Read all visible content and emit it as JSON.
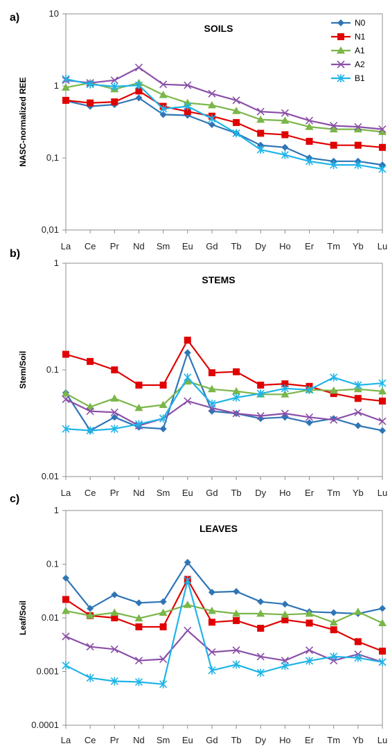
{
  "chart_data": [
    {
      "panel_label": "a)",
      "type": "line",
      "title": "SOILS",
      "ylabel": "NASC-normalized REE",
      "yscale": "log",
      "ylim": [
        0.01,
        10
      ],
      "yticks": [
        "10",
        "1",
        "0,1",
        "0,01"
      ],
      "legend": "top-right",
      "categories": [
        "La",
        "Ce",
        "Pr",
        "Nd",
        "Sm",
        "Eu",
        "Gd",
        "Tb",
        "Dy",
        "Ho",
        "Er",
        "Tm",
        "Yb",
        "Lu"
      ],
      "series": [
        {
          "name": "N0",
          "color": "#2E75B6",
          "marker": "diamond",
          "values": [
            0.62,
            0.52,
            0.55,
            0.68,
            0.4,
            0.39,
            0.29,
            0.22,
            0.15,
            0.14,
            0.1,
            0.09,
            0.09,
            0.08
          ]
        },
        {
          "name": "N1",
          "color": "#E00000",
          "marker": "square",
          "values": [
            0.63,
            0.58,
            0.6,
            0.85,
            0.52,
            0.44,
            0.38,
            0.31,
            0.22,
            0.21,
            0.17,
            0.15,
            0.15,
            0.14
          ]
        },
        {
          "name": "A1",
          "color": "#7AB648",
          "marker": "triangle",
          "values": [
            0.95,
            1.1,
            0.9,
            1.1,
            0.75,
            0.58,
            0.54,
            0.45,
            0.34,
            0.33,
            0.27,
            0.25,
            0.25,
            0.23
          ]
        },
        {
          "name": "A2",
          "color": "#8A4FA8",
          "marker": "x",
          "values": [
            1.2,
            1.1,
            1.2,
            1.8,
            1.05,
            1.02,
            0.78,
            0.63,
            0.44,
            0.42,
            0.33,
            0.28,
            0.27,
            0.25
          ]
        },
        {
          "name": "B1",
          "color": "#1EB4E8",
          "marker": "asterisk",
          "values": [
            1.25,
            1.05,
            0.98,
            1.02,
            0.48,
            0.52,
            0.35,
            0.22,
            0.13,
            0.11,
            0.09,
            0.08,
            0.08,
            0.07
          ]
        }
      ]
    },
    {
      "panel_label": "b)",
      "type": "line",
      "title": "STEMS",
      "ylabel": "Stem/Soil",
      "yscale": "log",
      "ylim": [
        0.01,
        1
      ],
      "yticks": [
        "1",
        "0.1",
        "0.01"
      ],
      "categories": [
        "La",
        "Ce",
        "Pr",
        "Nd",
        "Sm",
        "Eu",
        "Gd",
        "Tb",
        "Dy",
        "Ho",
        "Er",
        "Tm",
        "Yb",
        "Lu"
      ],
      "series": [
        {
          "name": "N0",
          "color": "#2E75B6",
          "marker": "diamond",
          "values": [
            0.061,
            0.027,
            0.036,
            0.029,
            0.028,
            0.145,
            0.041,
            0.039,
            0.035,
            0.036,
            0.032,
            0.035,
            0.03,
            0.027
          ]
        },
        {
          "name": "N1",
          "color": "#E00000",
          "marker": "square",
          "values": [
            0.14,
            0.12,
            0.1,
            0.072,
            0.072,
            0.19,
            0.094,
            0.096,
            0.072,
            0.074,
            0.07,
            0.06,
            0.054,
            0.051
          ]
        },
        {
          "name": "A1",
          "color": "#7AB648",
          "marker": "triangle",
          "values": [
            0.06,
            0.045,
            0.054,
            0.044,
            0.047,
            0.078,
            0.066,
            0.063,
            0.059,
            0.059,
            0.065,
            0.064,
            0.066,
            0.063
          ]
        },
        {
          "name": "A2",
          "color": "#8A4FA8",
          "marker": "x",
          "values": [
            0.053,
            0.041,
            0.04,
            0.03,
            0.035,
            0.051,
            0.044,
            0.039,
            0.037,
            0.039,
            0.036,
            0.034,
            0.04,
            0.033
          ]
        },
        {
          "name": "B1",
          "color": "#1EB4E8",
          "marker": "asterisk",
          "values": [
            0.028,
            0.027,
            0.028,
            0.031,
            0.035,
            0.085,
            0.048,
            0.055,
            0.06,
            0.067,
            0.065,
            0.085,
            0.072,
            0.075
          ]
        }
      ]
    },
    {
      "panel_label": "c)",
      "type": "line",
      "title": "LEAVES",
      "ylabel": "Leaf/Soil",
      "yscale": "log",
      "ylim": [
        0.0001,
        1
      ],
      "yticks": [
        "1",
        "0.1",
        "0.01",
        "0.001",
        "0.0001"
      ],
      "categories": [
        "La",
        "Ce",
        "Pr",
        "Nd",
        "Sm",
        "Eu",
        "Gd",
        "Tb",
        "Dy",
        "Ho",
        "Er",
        "Tm",
        "Yb",
        "Lu"
      ],
      "series": [
        {
          "name": "N0",
          "color": "#2E75B6",
          "marker": "diamond",
          "values": [
            0.055,
            0.015,
            0.027,
            0.019,
            0.02,
            0.108,
            0.03,
            0.031,
            0.02,
            0.018,
            0.013,
            0.0125,
            0.012,
            0.015
          ]
        },
        {
          "name": "N1",
          "color": "#E00000",
          "marker": "square",
          "values": [
            0.022,
            0.011,
            0.01,
            0.0068,
            0.0068,
            0.052,
            0.0083,
            0.0089,
            0.0064,
            0.0092,
            0.008,
            0.006,
            0.0036,
            0.0024
          ]
        },
        {
          "name": "A1",
          "color": "#7AB648",
          "marker": "triangle",
          "values": [
            0.0135,
            0.011,
            0.0125,
            0.0098,
            0.0125,
            0.0175,
            0.0135,
            0.012,
            0.012,
            0.0115,
            0.012,
            0.0082,
            0.013,
            0.008
          ]
        },
        {
          "name": "A2",
          "color": "#8A4FA8",
          "marker": "x",
          "values": [
            0.0045,
            0.0029,
            0.0026,
            0.0016,
            0.0017,
            0.0058,
            0.0023,
            0.0025,
            0.0019,
            0.0016,
            0.0025,
            0.0016,
            0.0021,
            0.0015
          ]
        },
        {
          "name": "B1",
          "color": "#1EB4E8",
          "marker": "asterisk",
          "values": [
            0.0013,
            0.00076,
            0.00066,
            0.00064,
            0.00058,
            0.05,
            0.00105,
            0.00135,
            0.00095,
            0.00127,
            0.00158,
            0.0019,
            0.0018,
            0.0015
          ]
        }
      ]
    }
  ]
}
